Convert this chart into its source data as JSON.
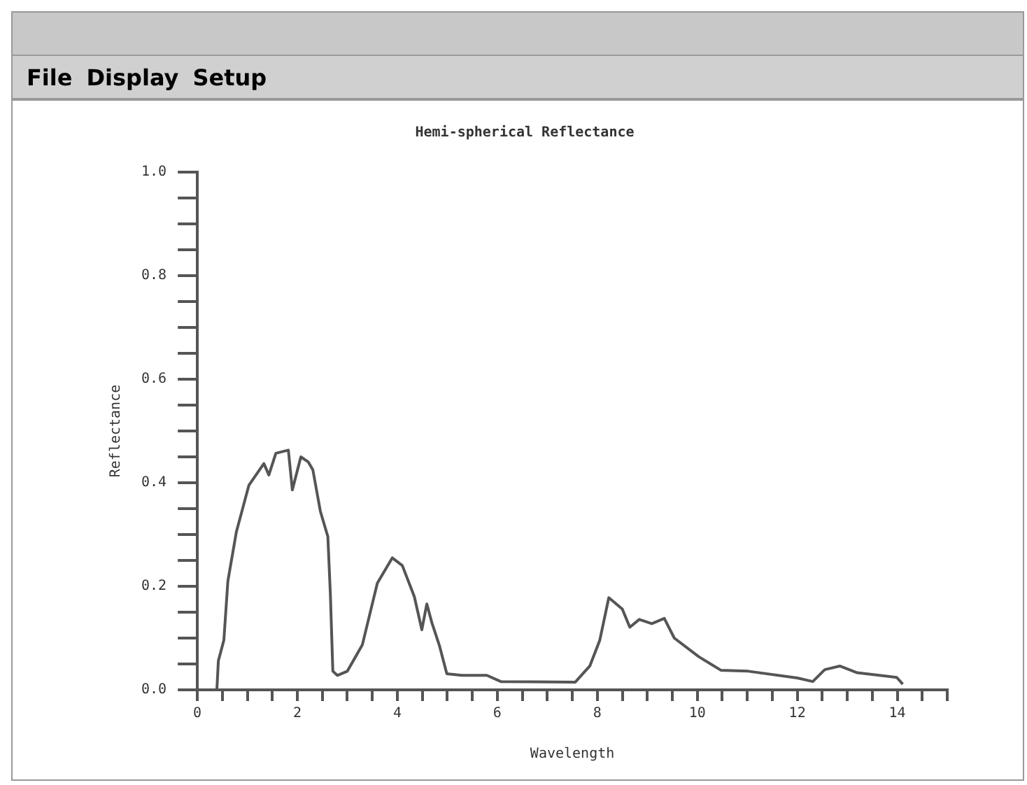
{
  "chart_data": {
    "type": "line",
    "title": "Hemi-spherical Reflectance",
    "xlabel": "Wavelength",
    "ylabel": "Reflectance",
    "annotations": [
      "File",
      "Display",
      "Setup"
    ],
    "xlim": [
      0,
      15
    ],
    "ylim": [
      0,
      1
    ],
    "xticks": [
      0,
      {
        "value": 0.5,
        "label": null
      },
      {
        "value": 1,
        "label": null
      },
      {
        "value": 1.5,
        "label": null
      },
      2,
      {
        "value": 2.5,
        "label": null
      },
      {
        "value": 3,
        "label": null
      },
      {
        "value": 3.5,
        "label": null
      },
      4,
      {
        "value": 4.5,
        "label": null
      },
      {
        "value": 5,
        "label": null
      },
      {
        "value": 5.5,
        "label": null
      },
      6,
      {
        "value": 6.5,
        "label": null
      },
      {
        "value": 7,
        "label": null
      },
      {
        "value": 7.5,
        "label": null
      },
      8,
      {
        "value": 8.5,
        "label": null
      },
      {
        "value": 9,
        "label": null
      },
      {
        "value": 9.5,
        "label": null
      },
      10,
      {
        "value": 10.5,
        "label": null
      },
      {
        "value": 11,
        "label": null
      },
      {
        "value": 11.5,
        "label": null
      },
      12,
      {
        "value": 12.5,
        "label": null
      },
      {
        "value": 13,
        "label": null
      },
      {
        "value": 13.5,
        "label": null
      },
      14,
      {
        "value": 14.5,
        "label": null
      },
      {
        "value": 15,
        "label": null
      }
    ],
    "yticks": [
      {
        "value": 0,
        "label": "0.0"
      },
      {
        "value": 0.05,
        "label": null
      },
      {
        "value": 0.1,
        "label": null
      },
      {
        "value": 0.15,
        "label": null
      },
      {
        "value": 0.2,
        "label": "0.2"
      },
      {
        "value": 0.25,
        "label": null
      },
      {
        "value": 0.3,
        "label": null
      },
      {
        "value": 0.35,
        "label": null
      },
      {
        "value": 0.4,
        "label": "0.4"
      },
      {
        "value": 0.45,
        "label": null
      },
      {
        "value": 0.5,
        "label": null
      },
      {
        "value": 0.55,
        "label": null
      },
      {
        "value": 0.6,
        "label": "0.6"
      },
      {
        "value": 0.65,
        "label": null
      },
      {
        "value": 0.7,
        "label": null
      },
      {
        "value": 0.75,
        "label": null
      },
      {
        "value": 0.8,
        "label": "0.8"
      },
      {
        "value": 0.85,
        "label": null
      },
      {
        "value": 0.9,
        "label": null
      },
      {
        "value": 0.95,
        "label": null
      },
      {
        "value": 1,
        "label": "1.0"
      }
    ],
    "grid": false,
    "legend": false,
    "marker": "none",
    "line_style": "solid",
    "series": [
      {
        "color": "#555555",
        "x": [
          0.39,
          0.42,
          0.53,
          0.61,
          0.78,
          1.03,
          1.33,
          1.43,
          1.57,
          1.82,
          1.9,
          2.07,
          2.22,
          2.31,
          2.46,
          2.61,
          2.66,
          2.71,
          2.8,
          3.0,
          3.3,
          3.6,
          3.9,
          4.1,
          4.34,
          4.49,
          4.59,
          4.69,
          4.84,
          4.99,
          5.29,
          5.79,
          6.07,
          7.56,
          7.85,
          8.05,
          8.23,
          8.5,
          8.65,
          8.84,
          9.09,
          9.34,
          9.54,
          10.03,
          10.47,
          11.02,
          12.0,
          12.31,
          12.55,
          12.85,
          13.2,
          13.99,
          14.11
        ],
        "values": [
          0,
          0.056,
          0.096,
          0.21,
          0.305,
          0.395,
          0.437,
          0.415,
          0.457,
          0.463,
          0.386,
          0.45,
          0.44,
          0.425,
          0.345,
          0.296,
          0.186,
          0.036,
          0.028,
          0.036,
          0.087,
          0.206,
          0.255,
          0.24,
          0.18,
          0.116,
          0.166,
          0.13,
          0.086,
          0.031,
          0.028,
          0.028,
          0.016,
          0.015,
          0.046,
          0.096,
          0.178,
          0.156,
          0.121,
          0.136,
          0.128,
          0.138,
          0.1,
          0.064,
          0.038,
          0.036,
          0.023,
          0.016,
          0.039,
          0.046,
          0.033,
          0.024,
          0.011
        ]
      }
    ]
  }
}
